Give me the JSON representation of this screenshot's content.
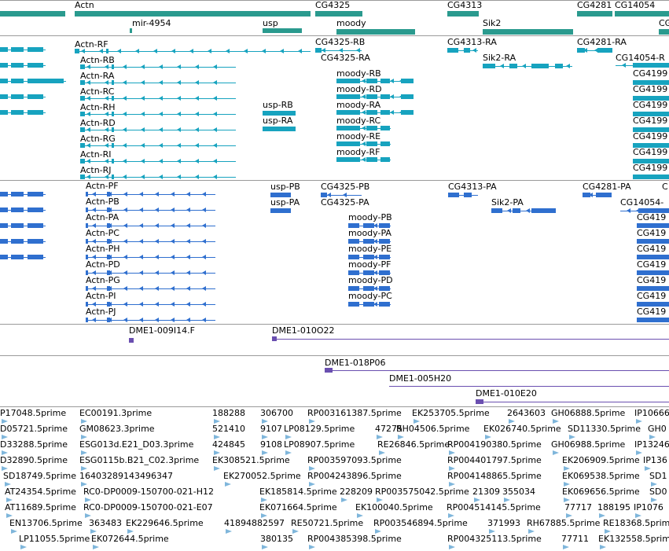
{
  "colors": {
    "gene": "#2a9a8e",
    "gene_light": "#3aa7a0",
    "transcript": "#17a3bf",
    "protein": "#2f6fcf",
    "bac": "#6a4fb0",
    "est": "#7fb6db",
    "separator": "#9a9a9a"
  },
  "gene_track": {
    "labels": [
      "Actn",
      "mir-4954",
      "usp",
      "CG4325",
      "moody",
      "CG4313",
      "Sik2",
      "CG4281",
      "CG14054",
      "CG"
    ]
  },
  "transcript_track": {
    "labels": [
      "Actn-RF",
      "Actn-RB",
      "Actn-RA",
      "Actn-RC",
      "Actn-RH",
      "Actn-RD",
      "Actn-RG",
      "Actn-RI",
      "Actn-RJ",
      "usp-RB",
      "usp-RA",
      "CG4325-RB",
      "CG4325-RA",
      "moody-RB",
      "moody-RD",
      "moody-RA",
      "moody-RC",
      "moody-RE",
      "moody-RF",
      "CG4313-RA",
      "Sik2-RA",
      "CG4281-RA",
      "CG14054-R",
      "CG4199",
      "CG4199",
      "CG4199",
      "CG4199",
      "CG4199",
      "CG4199",
      "CG4199"
    ]
  },
  "protein_track": {
    "labels": [
      "Actn-PF",
      "Actn-PB",
      "Actn-PA",
      "Actn-PC",
      "Actn-PH",
      "Actn-PD",
      "Actn-PG",
      "Actn-PI",
      "Actn-PJ",
      "usp-PB",
      "usp-PA",
      "CG4325-PB",
      "CG4325-PA",
      "moody-PB",
      "moody-PA",
      "moody-PE",
      "moody-PF",
      "moody-PD",
      "moody-PC",
      "CG4313-PA",
      "Sik2-PA",
      "CG4281-PA",
      "CG14054-",
      "CG419",
      "CG419",
      "CG419",
      "CG419",
      "CG419",
      "CG419",
      "CG419",
      "C"
    ]
  },
  "bac_track": {
    "labels": [
      "DME1-009I14.F",
      "DME1-010O22",
      "DME1-018P06",
      "DME1-005H20",
      "DME1-010E20"
    ]
  },
  "est_track": {
    "labels": [
      "P17048.5prime",
      "EC00191.3prime",
      "188288",
      "306700",
      "RP003161387.5prime",
      "EK253705.5prime",
      "2643603",
      "GH06888.5prime",
      "IP10666",
      "D05721.5prime",
      "GM08623.3prime",
      "521410",
      "9107",
      "LP08129.5prime",
      "47275",
      "RH04506.5prime",
      "EK026740.5prime",
      "SD11330.5prime",
      "GH0",
      "D33288.5prime",
      "ESG013d.E21_D03.3prime",
      "424845",
      "9108",
      "LP08907.5prime",
      "RE26846.5prime",
      "RP004190380.5prime",
      "GH06988.5prime",
      "IP13246",
      "D32890.5prime",
      "ESG0115b.B21_C02.3prime",
      "EK308521.5prime",
      "RP003597093.5prime",
      "RP004401797.5prime",
      "EK206909.5prime",
      "IP136",
      "SD18749.5prime",
      "16403289143496347",
      "EK270052.5prime",
      "RP004243896.5prime",
      "RP004148865.5prime",
      "EK069538.5prime",
      "SD1",
      "AT24354.5prime",
      "RC0-DP0009-150700-021-H12",
      "EK185814.5prime",
      "228209",
      "RP003575042.5prime",
      "21309",
      "355034",
      "EK069656.5prime",
      "SD0",
      "AT11689.5prime",
      "RC0-DP0009-150700-021-E07",
      "EK071664.5prime",
      "EK100040.5prime",
      "RP004514145.5prime",
      "77717",
      "188195",
      "IP1076",
      "EN13706.5prime",
      "363483",
      "EK229646.5prime",
      "41894882597",
      "RE50721.5prime",
      "RP003546894.5prime",
      "371993",
      "RH67885.5prime",
      "RE18368.5prime",
      "LP11055.5prime",
      "EK072644.5prime",
      "380135",
      "RP004385398.5prime",
      "RP004325113.5prime",
      "77711",
      "EK132558.5prime"
    ]
  }
}
